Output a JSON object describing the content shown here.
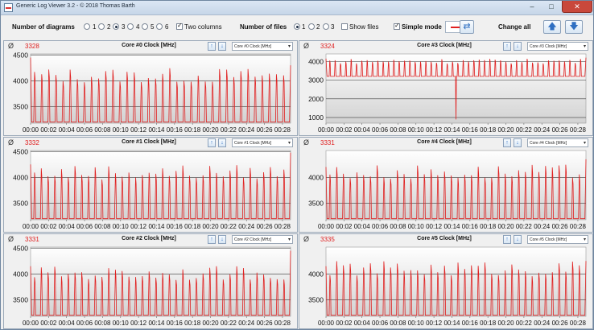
{
  "window": {
    "title": "Generic Log Viewer 3.2 - © 2018 Thomas Barth",
    "minimize": "–",
    "maximize": "□",
    "close": "✕"
  },
  "toolbar": {
    "num_diagrams_label": "Number of diagrams",
    "diagram_options": [
      "1",
      "2",
      "3",
      "4",
      "5",
      "6"
    ],
    "diagram_selected": "3",
    "two_columns_label": "Two columns",
    "two_columns_checked": true,
    "num_files_label": "Number of files",
    "file_options": [
      "1",
      "2",
      "3"
    ],
    "file_selected": "1",
    "show_files_label": "Show files",
    "show_files_checked": false,
    "simple_mode_label": "Simple mode",
    "simple_mode_checked": true,
    "swap_icon": "swap-arrows-icon",
    "change_all_label": "Change all",
    "up_icon": "arrow-up-icon",
    "down_icon": "arrow-down-icon",
    "line_color": "#e02020"
  },
  "panels": [
    {
      "id": "core0",
      "avg_symbol": "Ø",
      "avg": "3328",
      "title": "Core #0 Clock [MHz]",
      "selector": "Core #0 Clock [MHz]",
      "chart_data": {
        "type": "line",
        "x_ticks": [
          "00:00",
          "00:02",
          "00:04",
          "00:06",
          "00:08",
          "00:10",
          "00:12",
          "00:14",
          "00:16",
          "00:18",
          "00:20",
          "00:22",
          "00:24",
          "00:26",
          "00:28"
        ],
        "y_ticks": [
          3500,
          4000,
          4500
        ],
        "ylim": [
          3180,
          4520
        ],
        "base": 3200,
        "spikes": 36,
        "spike_max": 4250,
        "start": 4450,
        "end": 4300,
        "dips": []
      }
    },
    {
      "id": "core3",
      "avg_symbol": "Ø",
      "avg": "3324",
      "title": "Core #3 Clock [MHz]",
      "selector": "Core #3 Clock [MHz]",
      "chart_data": {
        "type": "line",
        "x_ticks": [
          "00:00",
          "00:02",
          "00:04",
          "00:06",
          "00:08",
          "00:10",
          "00:12",
          "00:14",
          "00:16",
          "00:18",
          "00:20",
          "00:22",
          "00:24",
          "00:26",
          "00:28"
        ],
        "y_ticks": [
          1000,
          2000,
          3000,
          4000
        ],
        "ylim": [
          700,
          4400
        ],
        "base": 3200,
        "spikes": 48,
        "spike_max": 4150,
        "start": 4150,
        "end": 4200,
        "dips": [
          {
            "x": 0.5,
            "y": 900
          }
        ]
      }
    },
    {
      "id": "core1",
      "avg_symbol": "Ø",
      "avg": "3332",
      "title": "Core #1 Clock [MHz]",
      "selector": "Core #1 Clock [MHz]",
      "chart_data": {
        "type": "line",
        "x_ticks": [
          "00:00",
          "00:02",
          "00:04",
          "00:06",
          "00:08",
          "00:10",
          "00:12",
          "00:14",
          "00:16",
          "00:18",
          "00:20",
          "00:22",
          "00:24",
          "00:26",
          "00:28"
        ],
        "y_ticks": [
          3500,
          4000,
          4500
        ],
        "ylim": [
          3180,
          4520
        ],
        "base": 3200,
        "spikes": 38,
        "spike_max": 4250,
        "start": 4250,
        "end": 4480,
        "dips": []
      }
    },
    {
      "id": "core4",
      "avg_symbol": "Ø",
      "avg": "3331",
      "title": "Core #4 Clock [MHz]",
      "selector": "Core #4 Clock [MHz]",
      "chart_data": {
        "type": "line",
        "x_ticks": [
          "00:00",
          "00:02",
          "00:04",
          "00:06",
          "00:08",
          "00:10",
          "00:12",
          "00:14",
          "00:16",
          "00:18",
          "00:20",
          "00:22",
          "00:24",
          "00:26",
          "00:28"
        ],
        "y_ticks": [
          3500,
          4000
        ],
        "ylim": [
          3180,
          4520
        ],
        "base": 3200,
        "spikes": 38,
        "spike_max": 4250,
        "start": 4200,
        "end": 4350,
        "dips": []
      }
    },
    {
      "id": "core2",
      "avg_symbol": "Ø",
      "avg": "3331",
      "title": "Core #2 Clock [MHz]",
      "selector": "Core #2 Clock [MHz]",
      "chart_data": {
        "type": "line",
        "x_ticks": [
          "00:00",
          "00:02",
          "00:04",
          "00:06",
          "00:08",
          "00:10",
          "00:12",
          "00:14",
          "00:16",
          "00:18",
          "00:20",
          "00:22",
          "00:24",
          "00:26",
          "00:28"
        ],
        "y_ticks": [
          3500,
          4000,
          4500
        ],
        "ylim": [
          3180,
          4520
        ],
        "base": 3200,
        "spikes": 38,
        "spike_max": 4150,
        "start": 4150,
        "end": 4450,
        "dips": []
      }
    },
    {
      "id": "core5",
      "avg_symbol": "Ø",
      "avg": "3335",
      "title": "Core #5 Clock [MHz]",
      "selector": "Core #5 Clock [MHz]",
      "chart_data": {
        "type": "line",
        "x_ticks": [
          "00:00",
          "00:02",
          "00:04",
          "00:06",
          "00:08",
          "00:10",
          "00:12",
          "00:14",
          "00:16",
          "00:18",
          "00:20",
          "00:22",
          "00:24",
          "00:26",
          "00:28"
        ],
        "y_ticks": [
          3500,
          4000
        ],
        "ylim": [
          3180,
          4520
        ],
        "base": 3200,
        "spikes": 38,
        "spike_max": 4250,
        "start": 4150,
        "end": 4250,
        "dips": []
      }
    }
  ]
}
